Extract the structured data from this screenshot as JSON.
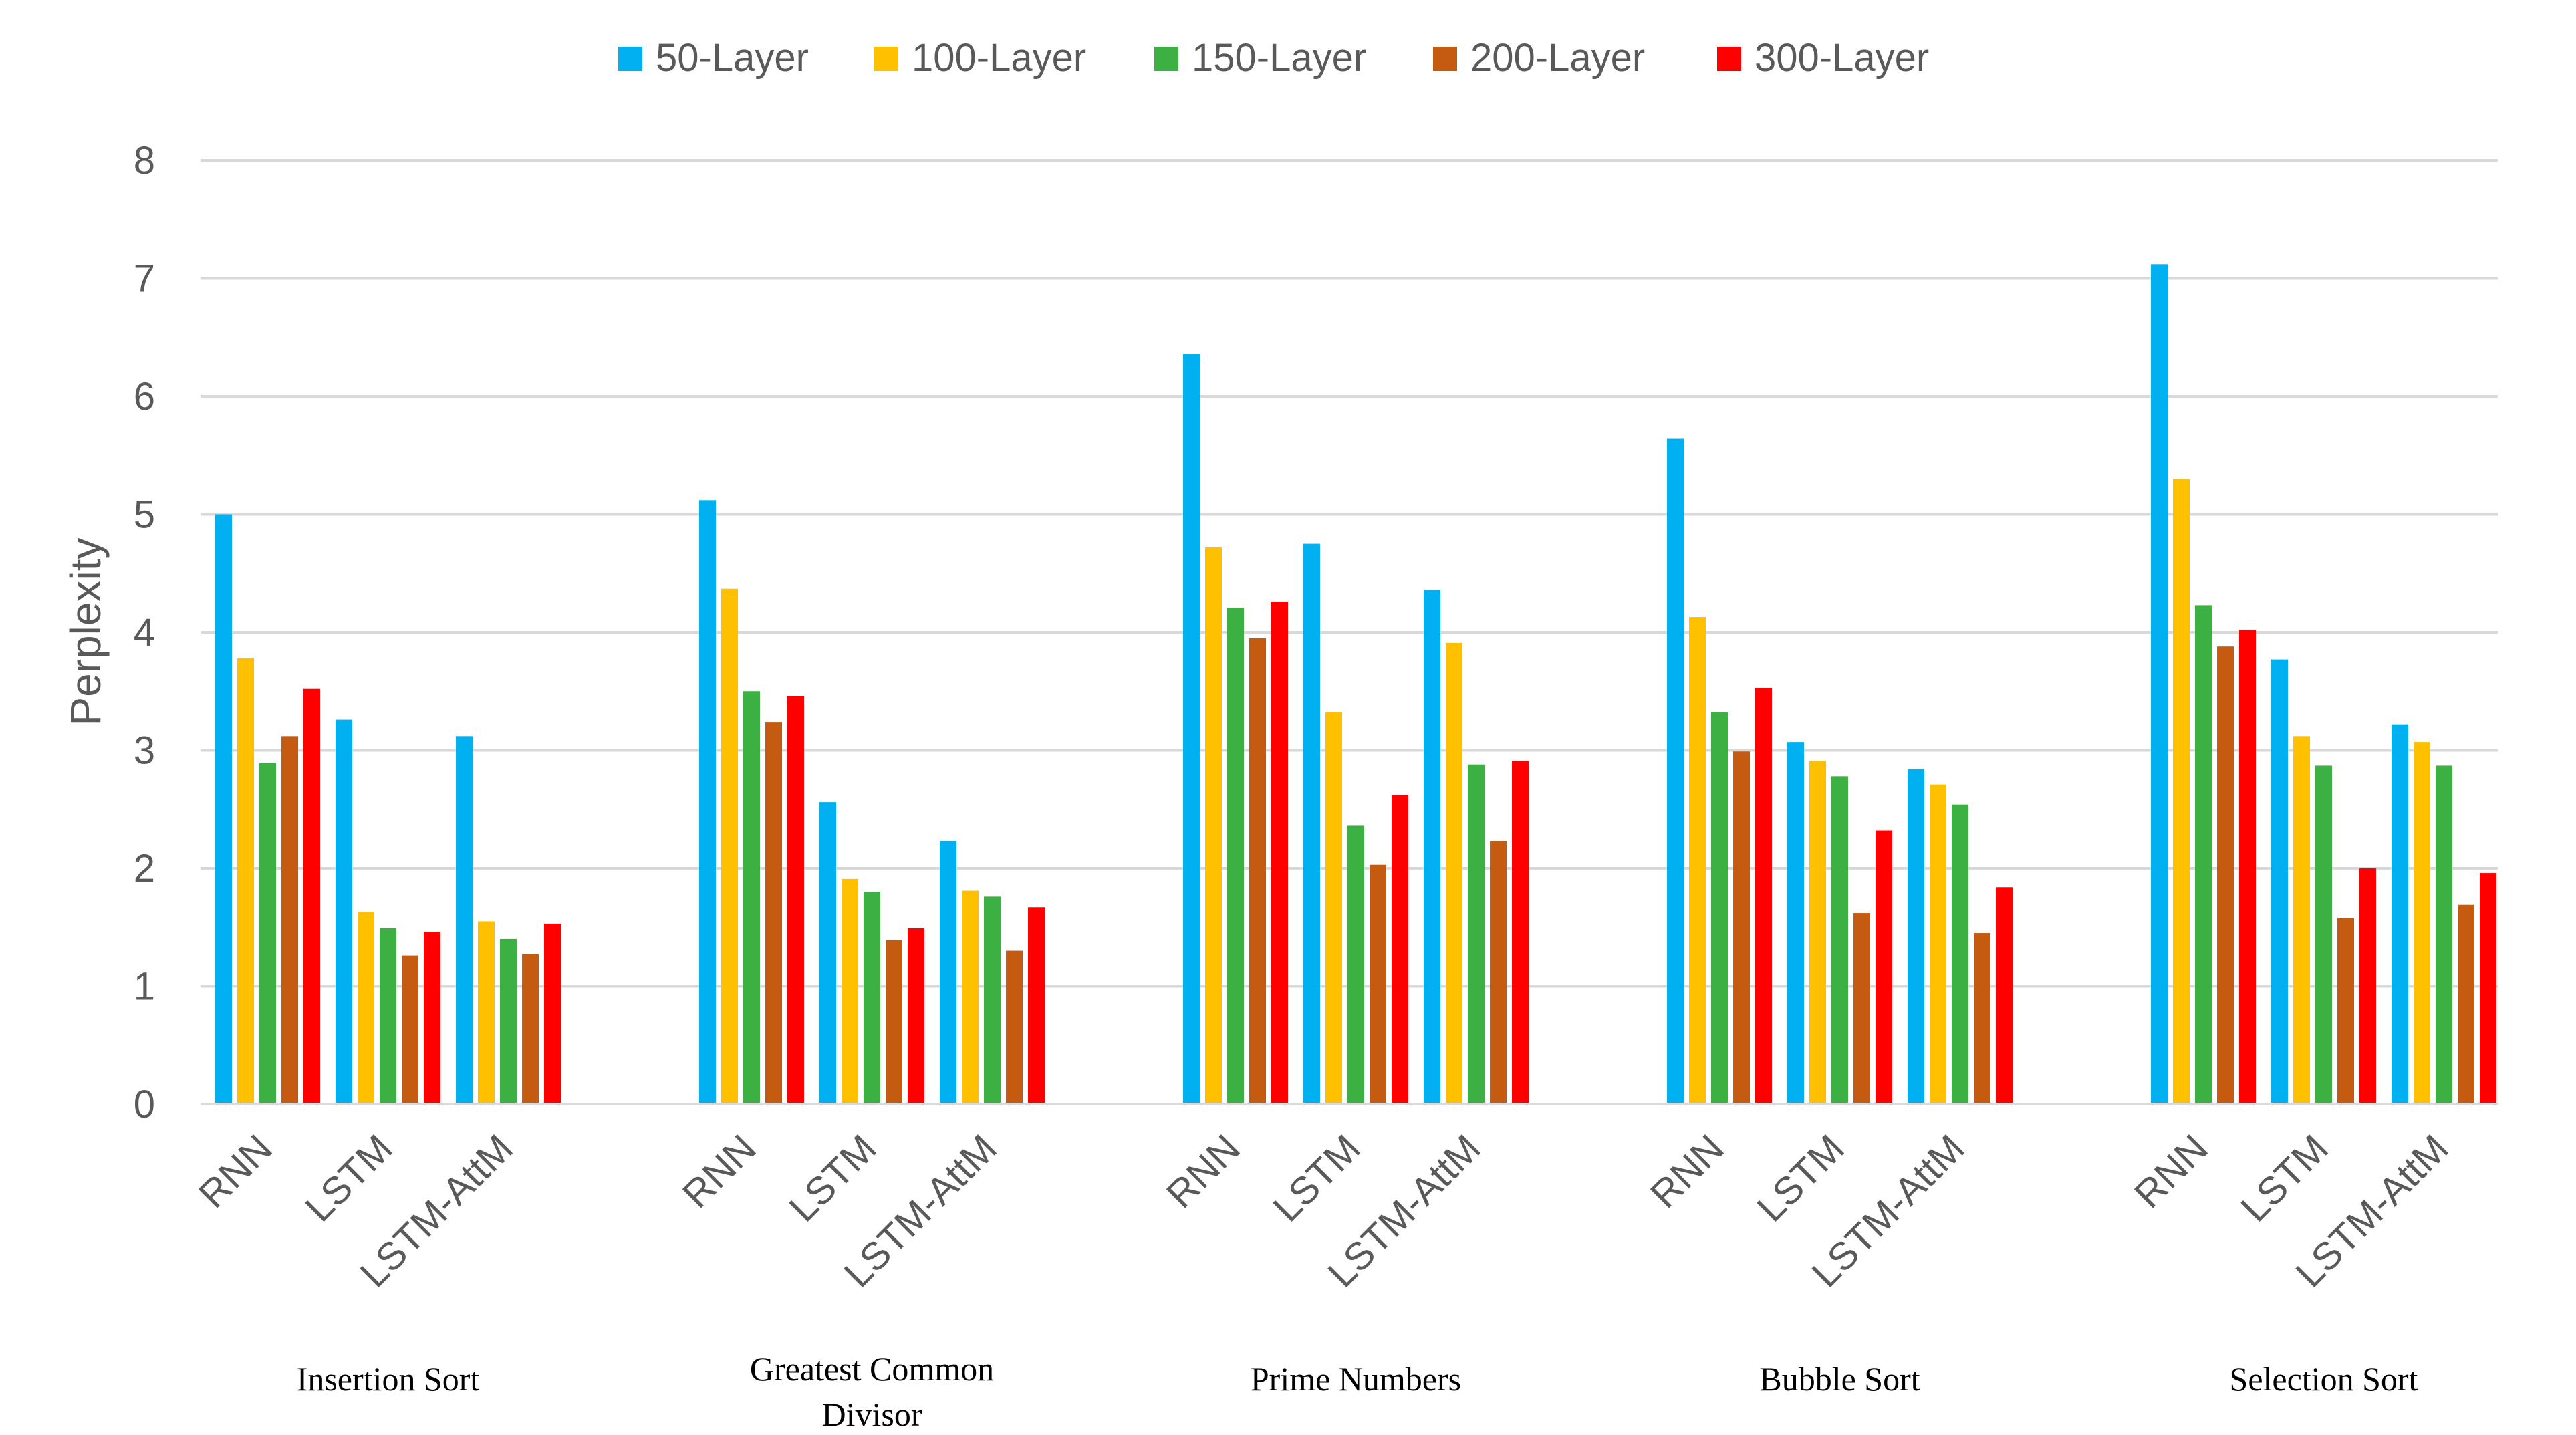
{
  "chart_data": {
    "type": "bar",
    "title": "",
    "xlabel": "",
    "ylabel": "Perplexity",
    "ylim": [
      0,
      8
    ],
    "yticks": [
      0,
      1,
      2,
      3,
      4,
      5,
      6,
      7,
      8
    ],
    "grid": true,
    "legend_position": "top-center",
    "models": [
      "RNN",
      "LSTM",
      "LSTM-AttM"
    ],
    "groups": [
      {
        "name": "Insertion Sort",
        "label_lines": [
          "Insertion Sort"
        ]
      },
      {
        "name": "Greatest Common Divisor",
        "label_lines": [
          "Greatest Common",
          "Divisor"
        ]
      },
      {
        "name": "Prime Numbers",
        "label_lines": [
          "Prime Numbers"
        ]
      },
      {
        "name": "Bubble Sort",
        "label_lines": [
          "Bubble Sort"
        ]
      },
      {
        "name": "Selection Sort",
        "label_lines": [
          "Selection Sort"
        ]
      }
    ],
    "series": [
      {
        "name": "50-Layer",
        "color": "#00B0F0",
        "values": [
          [
            5.0,
            3.26,
            3.12
          ],
          [
            5.12,
            2.56,
            2.23
          ],
          [
            6.36,
            4.75,
            4.36
          ],
          [
            5.64,
            3.07,
            2.84
          ],
          [
            7.12,
            3.77,
            3.22
          ]
        ]
      },
      {
        "name": "100-Layer",
        "color": "#FFC000",
        "values": [
          [
            3.78,
            1.63,
            1.55
          ],
          [
            4.37,
            1.91,
            1.81
          ],
          [
            4.72,
            3.32,
            3.91
          ],
          [
            4.13,
            2.91,
            2.71
          ],
          [
            5.3,
            3.12,
            3.07
          ]
        ]
      },
      {
        "name": "150-Layer",
        "color": "#3CB043",
        "values": [
          [
            2.89,
            1.49,
            1.4
          ],
          [
            3.5,
            1.8,
            1.76
          ],
          [
            4.21,
            2.36,
            2.88
          ],
          [
            3.32,
            2.78,
            2.54
          ],
          [
            4.23,
            2.87,
            2.87
          ]
        ]
      },
      {
        "name": "200-Layer",
        "color": "#C55A11",
        "values": [
          [
            3.12,
            1.26,
            1.27
          ],
          [
            3.24,
            1.39,
            1.3
          ],
          [
            3.95,
            2.03,
            2.23
          ],
          [
            2.99,
            1.62,
            1.45
          ],
          [
            3.88,
            1.58,
            1.69
          ]
        ]
      },
      {
        "name": "300-Layer",
        "color": "#FF0000",
        "values": [
          [
            3.52,
            1.46,
            1.53
          ],
          [
            3.46,
            1.49,
            1.67
          ],
          [
            4.26,
            2.62,
            2.91
          ],
          [
            3.53,
            2.32,
            1.84
          ],
          [
            4.02,
            2.0,
            1.96
          ]
        ]
      }
    ]
  },
  "colors": {
    "grid": "#D9D9D9",
    "axis": "#D9D9D9",
    "text": "#595959"
  }
}
